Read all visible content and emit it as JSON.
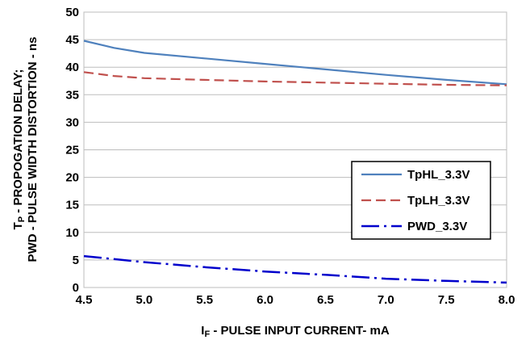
{
  "chart_data": {
    "type": "line",
    "title": "",
    "xlabel": {
      "main": "I",
      "sub": "F",
      "rest": " - PULSE INPUT CURRENT- mA"
    },
    "ylabel": {
      "line1_main": "T",
      "line1_sub": "P",
      "line1_rest": " - PROPOGATION DELAY;",
      "line2": "PWD - PULSE WIDTH DISTORTION - ns"
    },
    "xlim": [
      4.5,
      8.0
    ],
    "ylim": [
      0,
      50
    ],
    "xticks": [
      "4.5",
      "5.0",
      "5.5",
      "6.0",
      "6.5",
      "7.0",
      "7.5",
      "8.0"
    ],
    "yticks": [
      "0",
      "5",
      "10",
      "15",
      "20",
      "25",
      "30",
      "35",
      "40",
      "45",
      "50"
    ],
    "grid": "horizontal",
    "legend_position": "lower-right",
    "series": [
      {
        "name": "TpHL_3.3V",
        "color": "#4f81bd",
        "style": "solid",
        "x": [
          4.5,
          4.75,
          5.0,
          5.5,
          6.0,
          6.5,
          7.0,
          7.5,
          8.0
        ],
        "y": [
          44.8,
          43.5,
          42.6,
          41.6,
          40.6,
          39.6,
          38.6,
          37.7,
          36.9
        ]
      },
      {
        "name": "TpLH_3.3V",
        "color": "#c0504d",
        "style": "dashed",
        "x": [
          4.5,
          4.75,
          5.0,
          5.5,
          6.0,
          6.5,
          7.0,
          7.5,
          8.0
        ],
        "y": [
          39.1,
          38.4,
          38.0,
          37.7,
          37.4,
          37.2,
          37.0,
          36.8,
          36.7
        ]
      },
      {
        "name": "PWD_3.3V",
        "color": "#0000cc",
        "style": "dashdot",
        "x": [
          4.5,
          5.0,
          5.5,
          6.0,
          6.5,
          7.0,
          7.5,
          8.0
        ],
        "y": [
          5.7,
          4.6,
          3.7,
          2.9,
          2.3,
          1.6,
          1.2,
          0.9
        ]
      }
    ]
  }
}
